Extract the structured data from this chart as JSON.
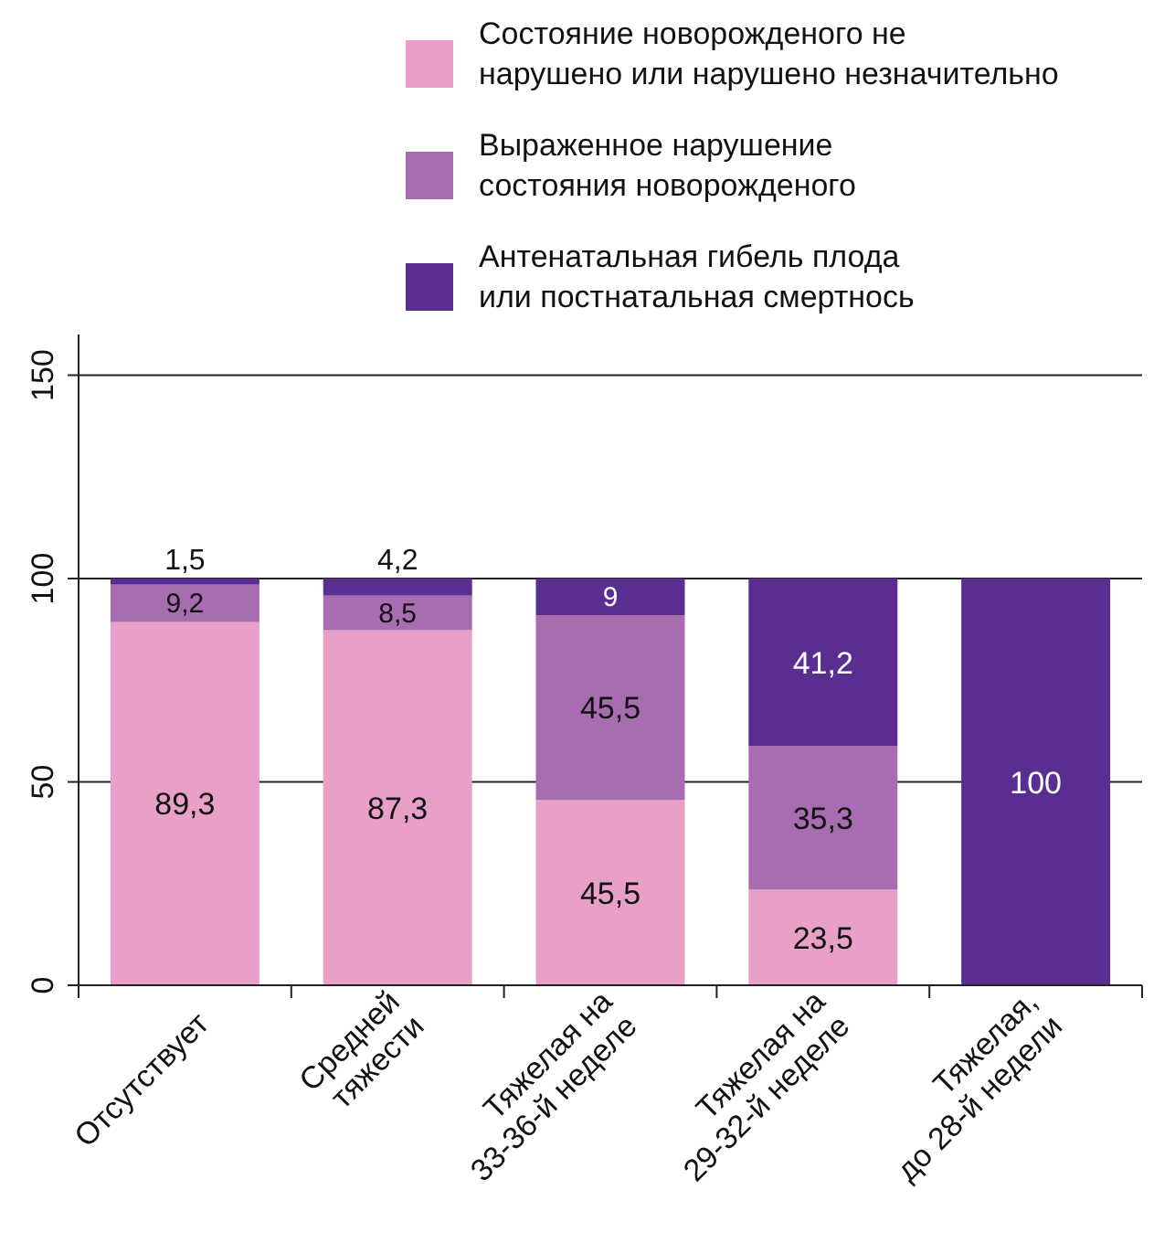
{
  "chart_data": {
    "type": "bar",
    "stacked": true,
    "categories": [
      "Отсутствует",
      "Средней\nтяжести",
      "Тяжелая на\n33-36-й неделе",
      "Тяжелая на\n29-32-й неделе",
      "Тяжелая,\nдо 28-й недели"
    ],
    "series": [
      {
        "name": "Состояние новорожденого не\nнарушено или нарушено незначительно",
        "color": "#e8a0c8",
        "values": [
          89.3,
          87.3,
          45.5,
          23.5,
          0
        ],
        "value_labels": [
          "89,3",
          "87,3",
          "45,5",
          "23,5",
          null
        ]
      },
      {
        "name": "Выраженное нарушение\nсостояния новорожденого",
        "color": "#a86cb0",
        "values": [
          9.2,
          8.5,
          45.5,
          35.3,
          0
        ],
        "value_labels": [
          "9,2",
          "8,5",
          "45,5",
          "35,3",
          null
        ]
      },
      {
        "name": "Антенатальная гибель плода\nили постнатальная смертнось",
        "color": "#5a2d91",
        "values": [
          1.5,
          4.2,
          9,
          41.2,
          100
        ],
        "value_labels": [
          "1,5",
          "4,2",
          "9",
          "41,2",
          "100"
        ]
      }
    ],
    "ylim": [
      0,
      160
    ],
    "yticks": [
      0,
      50,
      100,
      150
    ],
    "grid": "y",
    "legend": "top right"
  }
}
